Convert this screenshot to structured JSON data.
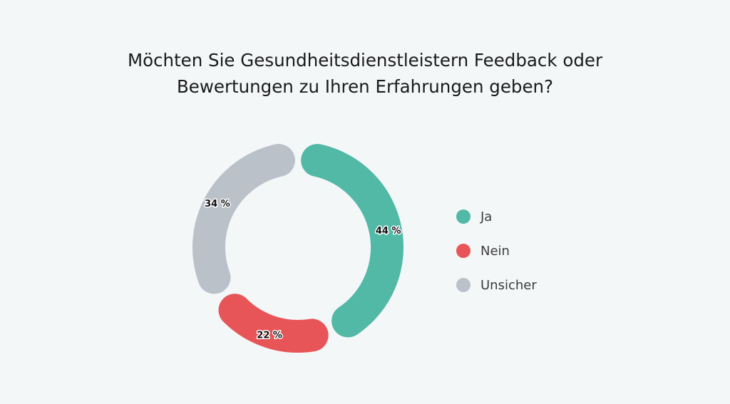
{
  "chart_data": {
    "type": "pie",
    "title": "Möchten Sie Gesundheitsdienstleistern Feedback oder Bewertungen zu Ihren Erfahrungen geben?",
    "title_lines": [
      "Möchten Sie Gesundheitsdienstleistern Feedback oder",
      "Bewertungen zu Ihren Erfahrungen geben?"
    ],
    "categories": [
      "Ja",
      "Nein",
      "Unsicher"
    ],
    "values": [
      44,
      22,
      34
    ],
    "labels": [
      "44 %",
      "22 %",
      "34 %"
    ],
    "colors": [
      "#52b9a6",
      "#e85558",
      "#bac1c9"
    ],
    "style": "donut",
    "legend_position": "right"
  }
}
